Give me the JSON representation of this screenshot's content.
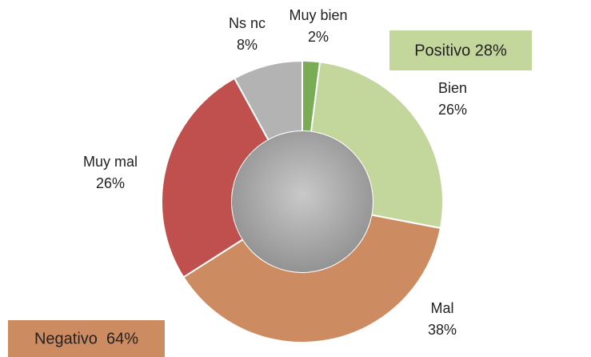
{
  "chart_data": {
    "type": "donut",
    "categories": [
      "Muy bien",
      "Bien",
      "Mal",
      "Muy mal",
      "Ns nc"
    ],
    "values": [
      2,
      26,
      38,
      26,
      8
    ],
    "value_labels": [
      "2%",
      "26%",
      "38%",
      "26%",
      "8%"
    ],
    "colors": [
      "#7aab55",
      "#c3d69b",
      "#cd8b62",
      "#c0504d",
      "#b3b3b3"
    ],
    "annotations": [
      {
        "text": "Positivo 28%",
        "color": "#c3d69b"
      },
      {
        "text": "Negativo  64%",
        "color": "#cd8b62"
      }
    ]
  }
}
